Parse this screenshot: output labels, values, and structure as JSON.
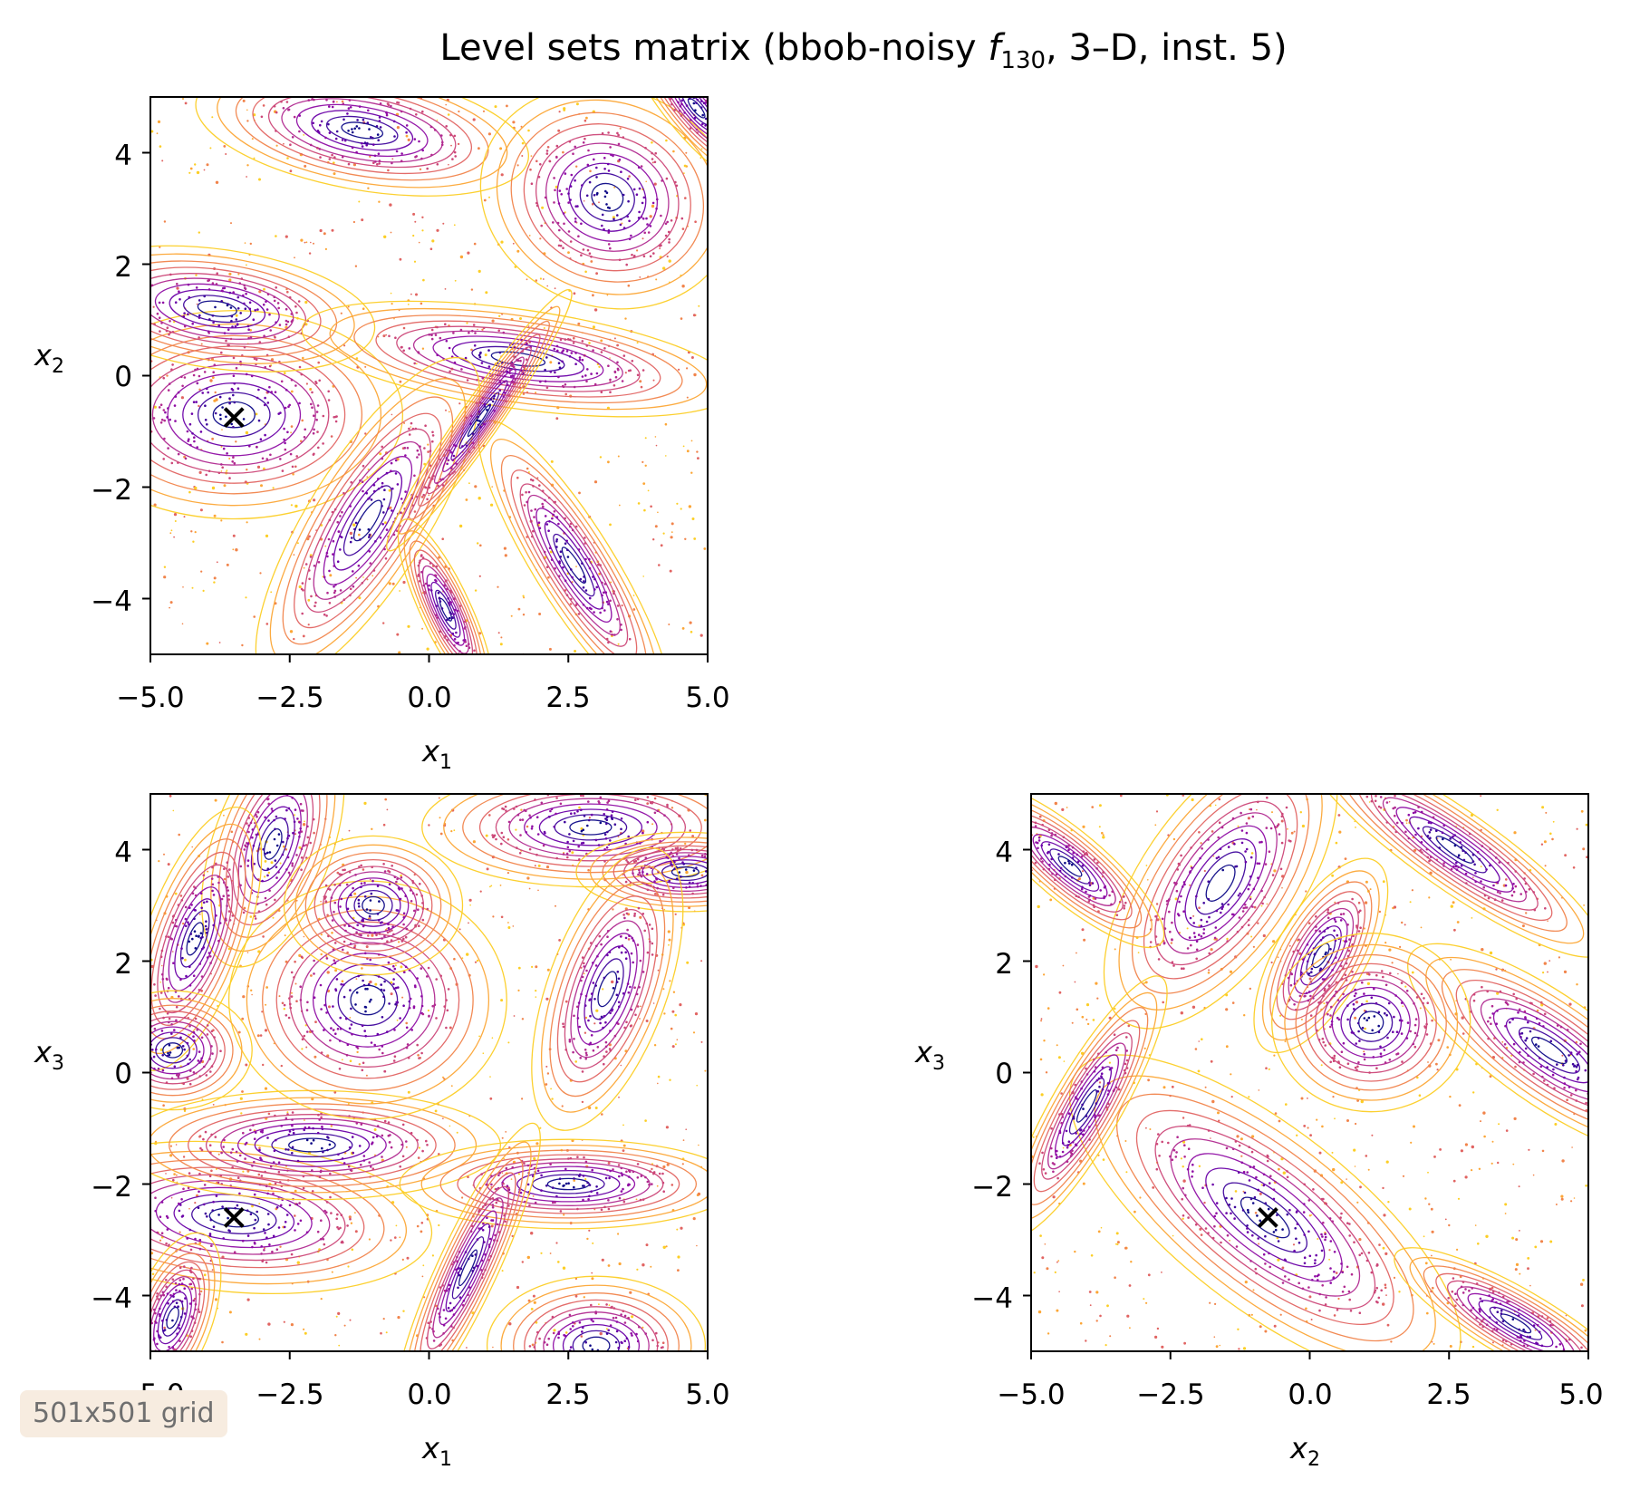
{
  "chart_data": {
    "type": "contour",
    "title": "Level sets matrix (bbob-noisy f130, 3–D, inst. 5)",
    "title_parts": {
      "prefix": "Level sets matrix (bbob-noisy ",
      "func": "f",
      "func_sub": "130",
      "suffix": ", 3–D, inst. 5)"
    },
    "colormap": "plasma",
    "grid": false,
    "note": "501x501 grid",
    "optimum": {
      "x1": -3.5,
      "x2": -0.75,
      "x3": -2.6
    },
    "panels": [
      {
        "id": "x1-x2",
        "xlabel": {
          "base": "x",
          "sub": "1"
        },
        "ylabel": {
          "base": "x",
          "sub": "2"
        },
        "xlim": [
          -5,
          5
        ],
        "ylim": [
          -5,
          5
        ],
        "xticks": [
          -5.0,
          -2.5,
          0.0,
          2.5,
          5.0
        ],
        "xtick_labels": [
          "−5.0",
          "−2.5",
          "0.0",
          "2.5",
          "5.0"
        ],
        "yticks": [
          4,
          2,
          0,
          -2,
          -4
        ],
        "ytick_labels": [
          "4",
          "2",
          "0",
          "−2",
          "−4"
        ],
        "optimum": [
          -3.5,
          -0.75
        ],
        "basins": [
          {
            "cx": -3.5,
            "cy": -0.7,
            "rx": 1.7,
            "ry": 1.05,
            "angle": 0
          },
          {
            "cx": -3.8,
            "cy": 1.2,
            "rx": 1.6,
            "ry": 0.6,
            "angle": -8
          },
          {
            "cx": 1.6,
            "cy": 0.3,
            "rx": 2.2,
            "ry": 0.5,
            "angle": -8
          },
          {
            "cx": -1.1,
            "cy": -2.6,
            "rx": 1.9,
            "ry": 0.6,
            "angle": 58
          },
          {
            "cx": -1.2,
            "cy": 4.4,
            "rx": 1.7,
            "ry": 0.6,
            "angle": -10
          },
          {
            "cx": 3.2,
            "cy": 3.2,
            "rx": 1.3,
            "ry": 1.1,
            "angle": -20
          },
          {
            "cx": 2.6,
            "cy": -3.4,
            "rx": 1.7,
            "ry": 0.4,
            "angle": -58
          },
          {
            "cx": 0.3,
            "cy": -4.2,
            "rx": 1.0,
            "ry": 0.25,
            "angle": -65
          },
          {
            "cx": 0.9,
            "cy": -0.8,
            "rx": 1.6,
            "ry": 0.2,
            "angle": 55
          },
          {
            "cx": 4.8,
            "cy": 4.8,
            "rx": 1.0,
            "ry": 0.3,
            "angle": -50
          }
        ]
      },
      {
        "id": "x1-x3",
        "xlabel": {
          "base": "x",
          "sub": "1"
        },
        "ylabel": {
          "base": "x",
          "sub": "3"
        },
        "xlim": [
          -5,
          5
        ],
        "ylim": [
          -5,
          5
        ],
        "xticks": [
          -5.0,
          -2.5,
          0.0,
          2.5,
          5.0
        ],
        "xtick_labels": [
          "−5.0",
          "−2.5",
          "0.0",
          "2.5",
          "5.0"
        ],
        "yticks": [
          4,
          2,
          0,
          -2,
          -4
        ],
        "ytick_labels": [
          "4",
          "2",
          "0",
          "−2",
          "−4"
        ],
        "optimum": [
          -3.5,
          -2.6
        ],
        "basins": [
          {
            "cx": -3.5,
            "cy": -2.6,
            "rx": 2.0,
            "ry": 0.75,
            "angle": -5
          },
          {
            "cx": -2.1,
            "cy": -1.3,
            "rx": 1.9,
            "ry": 0.55,
            "angle": 0
          },
          {
            "cx": -1.1,
            "cy": 1.3,
            "rx": 1.4,
            "ry": 1.2,
            "angle": 0
          },
          {
            "cx": -2.8,
            "cy": 4.1,
            "rx": 1.3,
            "ry": 0.6,
            "angle": 70
          },
          {
            "cx": -1.0,
            "cy": 3.0,
            "rx": 0.9,
            "ry": 0.7,
            "angle": 0
          },
          {
            "cx": -4.2,
            "cy": 2.4,
            "rx": 1.4,
            "ry": 0.5,
            "angle": 70
          },
          {
            "cx": -4.6,
            "cy": 0.4,
            "rx": 0.8,
            "ry": 0.6,
            "angle": 0
          },
          {
            "cx": 2.9,
            "cy": 4.4,
            "rx": 1.7,
            "ry": 0.6,
            "angle": 0
          },
          {
            "cx": 4.6,
            "cy": 3.6,
            "rx": 1.1,
            "ry": 0.4,
            "angle": 0
          },
          {
            "cx": 3.2,
            "cy": 1.5,
            "rx": 1.5,
            "ry": 0.6,
            "angle": 70
          },
          {
            "cx": 2.5,
            "cy": -2.0,
            "rx": 1.7,
            "ry": 0.45,
            "angle": 0
          },
          {
            "cx": 0.7,
            "cy": -3.5,
            "rx": 1.6,
            "ry": 0.3,
            "angle": 65
          },
          {
            "cx": 3.0,
            "cy": -4.9,
            "rx": 1.1,
            "ry": 0.7,
            "angle": 0
          },
          {
            "cx": -4.6,
            "cy": -4.4,
            "rx": 0.9,
            "ry": 0.4,
            "angle": 70
          }
        ]
      },
      {
        "id": "x2-x3",
        "xlabel": {
          "base": "x",
          "sub": "2"
        },
        "ylabel": {
          "base": "x",
          "sub": "3"
        },
        "xlim": [
          -5,
          5
        ],
        "ylim": [
          -5,
          5
        ],
        "xticks": [
          -5.0,
          -2.5,
          0.0,
          2.5,
          5.0
        ],
        "xtick_labels": [
          "−5.0",
          "−2.5",
          "0.0",
          "2.5",
          "5.0"
        ],
        "yticks": [
          4,
          2,
          0,
          -2,
          -4
        ],
        "ytick_labels": [
          "4",
          "2",
          "0",
          "−2",
          "−4"
        ],
        "optimum": [
          -0.75,
          -2.6
        ],
        "basins": [
          {
            "cx": -0.8,
            "cy": -2.6,
            "rx": 2.4,
            "ry": 0.9,
            "angle": -38
          },
          {
            "cx": 2.6,
            "cy": 4.0,
            "rx": 1.8,
            "ry": 0.4,
            "angle": -35
          },
          {
            "cx": 4.3,
            "cy": 0.4,
            "rx": 1.7,
            "ry": 0.55,
            "angle": -35
          },
          {
            "cx": -1.6,
            "cy": 3.4,
            "rx": 1.7,
            "ry": 0.8,
            "angle": 55
          },
          {
            "cx": 0.2,
            "cy": 2.1,
            "rx": 1.1,
            "ry": 0.45,
            "angle": 60
          },
          {
            "cx": 1.1,
            "cy": 0.9,
            "rx": 1.0,
            "ry": 0.9,
            "angle": 0
          },
          {
            "cx": -4.0,
            "cy": -0.6,
            "rx": 1.5,
            "ry": 0.35,
            "angle": 60
          },
          {
            "cx": -4.3,
            "cy": 3.7,
            "rx": 1.2,
            "ry": 0.35,
            "angle": -40
          },
          {
            "cx": 3.7,
            "cy": -4.5,
            "rx": 1.4,
            "ry": 0.35,
            "angle": -30
          }
        ]
      }
    ]
  }
}
